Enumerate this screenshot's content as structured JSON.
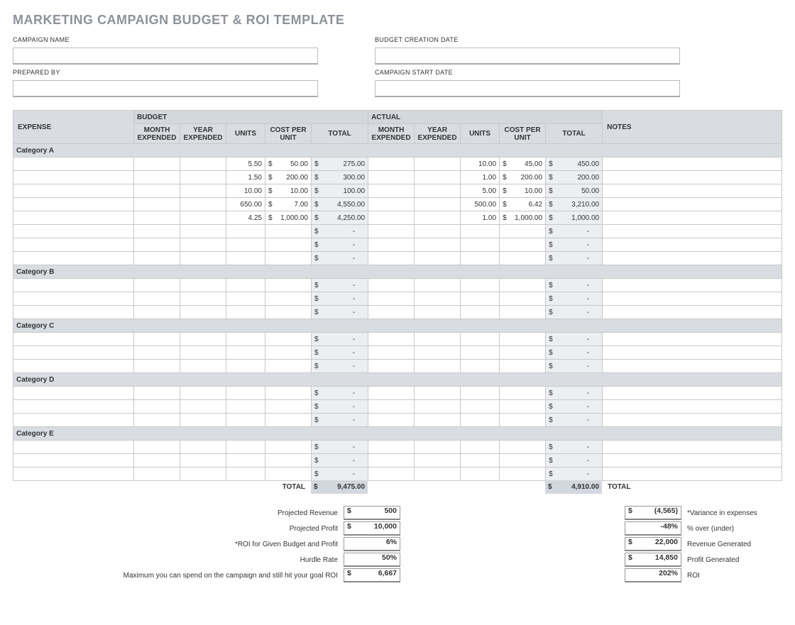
{
  "title": "MARKETING CAMPAIGN BUDGET & ROI TEMPLATE",
  "top_fields": {
    "campaign_name_label": "CAMPAIGN NAME",
    "campaign_name_value": "",
    "budget_creation_date_label": "BUDGET CREATION DATE",
    "budget_creation_date_value": "",
    "prepared_by_label": "PREPARED BY",
    "prepared_by_value": "",
    "campaign_start_date_label": "CAMPAIGN START DATE",
    "campaign_start_date_value": ""
  },
  "headers": {
    "budget": "BUDGET",
    "actual": "ACTUAL",
    "expense": "EXPENSE",
    "month_expended": "MONTH EXPENDED",
    "year_expended": "YEAR EXPENDED",
    "units": "UNITS",
    "cost_per_unit": "COST PER UNIT",
    "total": "TOTAL",
    "notes": "NOTES"
  },
  "categories": [
    {
      "name": "Category A",
      "rows": [
        {
          "b_u": "5.50",
          "b_cpu": "50.00",
          "b_tot": "275.00",
          "a_u": "10.00",
          "a_cpu": "45.00",
          "a_tot": "450.00"
        },
        {
          "b_u": "1.50",
          "b_cpu": "200.00",
          "b_tot": "300.00",
          "a_u": "1.00",
          "a_cpu": "200.00",
          "a_tot": "200.00"
        },
        {
          "b_u": "10.00",
          "b_cpu": "10.00",
          "b_tot": "100.00",
          "a_u": "5.00",
          "a_cpu": "10.00",
          "a_tot": "50.00"
        },
        {
          "b_u": "650.00",
          "b_cpu": "7.00",
          "b_tot": "4,550.00",
          "a_u": "500.00",
          "a_cpu": "6.42",
          "a_tot": "3,210.00"
        },
        {
          "b_u": "4.25",
          "b_cpu": "1,000.00",
          "b_tot": "4,250.00",
          "a_u": "1.00",
          "a_cpu": "1,000.00",
          "a_tot": "1,000.00"
        },
        {},
        {},
        {}
      ]
    },
    {
      "name": "Category B",
      "rows": [
        {},
        {},
        {}
      ]
    },
    {
      "name": "Category C",
      "rows": [
        {},
        {},
        {}
      ]
    },
    {
      "name": "Category D",
      "rows": [
        {},
        {},
        {}
      ]
    },
    {
      "name": "Category E",
      "rows": [
        {},
        {},
        {}
      ]
    }
  ],
  "totals_label": "TOTAL",
  "budget_total": "9,475.00",
  "actual_total": "4,910.00",
  "totals_right_label": "TOTAL",
  "left_metrics": [
    {
      "label": "Projected Revenue",
      "sym": "$",
      "value": "500"
    },
    {
      "label": "Projected Profit",
      "sym": "$",
      "value": "10,000"
    },
    {
      "label": "*ROI for Given Budget and Profit",
      "sym": "",
      "value": "6%"
    },
    {
      "label": "Hurdle Rate",
      "sym": "",
      "value": "50%"
    },
    {
      "label": "Maximum you can spend on the campaign and still hit your goal ROI",
      "sym": "$",
      "value": "6,667"
    }
  ],
  "right_metrics": [
    {
      "sym": "$",
      "value": "(4,565)",
      "label": "*Variance in expenses"
    },
    {
      "sym": "",
      "value": "-48%",
      "label": "% over (under)"
    },
    {
      "sym": "$",
      "value": "22,000",
      "label": "Revenue Generated"
    },
    {
      "sym": "$",
      "value": "14,850",
      "label": "Profit Generated"
    },
    {
      "sym": "",
      "value": "202%",
      "label": "ROI"
    }
  ],
  "colors": {
    "header_bg": "#d3d7de",
    "subheader_bg": "#d9dde2",
    "shade_bg": "#eceef1",
    "border": "#c8c8c8"
  }
}
